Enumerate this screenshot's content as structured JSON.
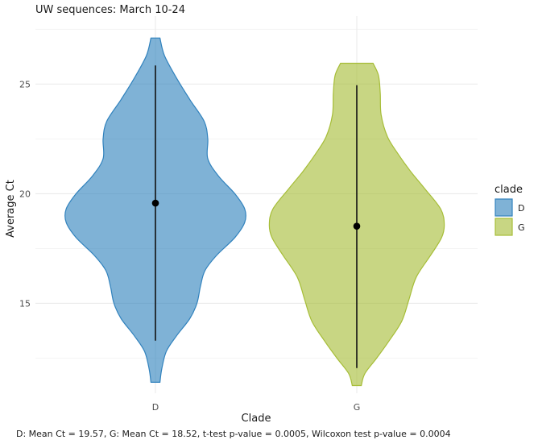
{
  "chart_data": {
    "type": "violin",
    "title": "UW sequences: March 10-24",
    "xlabel": "Clade",
    "ylabel": "Average Ct",
    "categories": [
      "D",
      "G"
    ],
    "ylim": [
      10.9,
      28.1
    ],
    "yticks": [
      15,
      20,
      25
    ],
    "grid": true,
    "legend": {
      "title": "clade",
      "position": "right",
      "entries": [
        "D",
        "G"
      ]
    },
    "colors": {
      "D": "#3182bd",
      "G": "#a6bd37"
    },
    "series": [
      {
        "name": "D",
        "mean": 19.57,
        "range_line": [
          13.3,
          25.85
        ],
        "extent": [
          11.4,
          27.1
        ],
        "density": [
          [
            11.4,
            0.05
          ],
          [
            12.0,
            0.07
          ],
          [
            12.8,
            0.12
          ],
          [
            13.5,
            0.23
          ],
          [
            14.3,
            0.38
          ],
          [
            15.0,
            0.46
          ],
          [
            15.8,
            0.5
          ],
          [
            16.5,
            0.55
          ],
          [
            17.2,
            0.68
          ],
          [
            18.0,
            0.88
          ],
          [
            18.7,
            0.99
          ],
          [
            19.3,
            0.99
          ],
          [
            20.0,
            0.88
          ],
          [
            20.8,
            0.7
          ],
          [
            21.6,
            0.58
          ],
          [
            22.5,
            0.58
          ],
          [
            23.3,
            0.54
          ],
          [
            24.3,
            0.38
          ],
          [
            25.3,
            0.23
          ],
          [
            26.3,
            0.1
          ],
          [
            27.1,
            0.05
          ]
        ]
      },
      {
        "name": "G",
        "mean": 18.52,
        "range_line": [
          12.05,
          24.95
        ],
        "extent": [
          11.25,
          25.95
        ],
        "density": [
          [
            11.25,
            0.05
          ],
          [
            11.8,
            0.09
          ],
          [
            12.5,
            0.22
          ],
          [
            13.3,
            0.36
          ],
          [
            14.2,
            0.5
          ],
          [
            15.2,
            0.58
          ],
          [
            16.2,
            0.66
          ],
          [
            17.2,
            0.82
          ],
          [
            18.0,
            0.94
          ],
          [
            18.6,
            0.97
          ],
          [
            19.3,
            0.93
          ],
          [
            20.2,
            0.76
          ],
          [
            21.0,
            0.6
          ],
          [
            21.8,
            0.46
          ],
          [
            22.6,
            0.34
          ],
          [
            23.6,
            0.27
          ],
          [
            24.6,
            0.26
          ],
          [
            25.4,
            0.24
          ],
          [
            25.95,
            0.18
          ]
        ]
      }
    ]
  },
  "caption": "D: Mean Ct = 19.57,  G: Mean Ct = 18.52,  t-test p-value = 0.0005,  Wilcoxon test p-value = 0.0004"
}
